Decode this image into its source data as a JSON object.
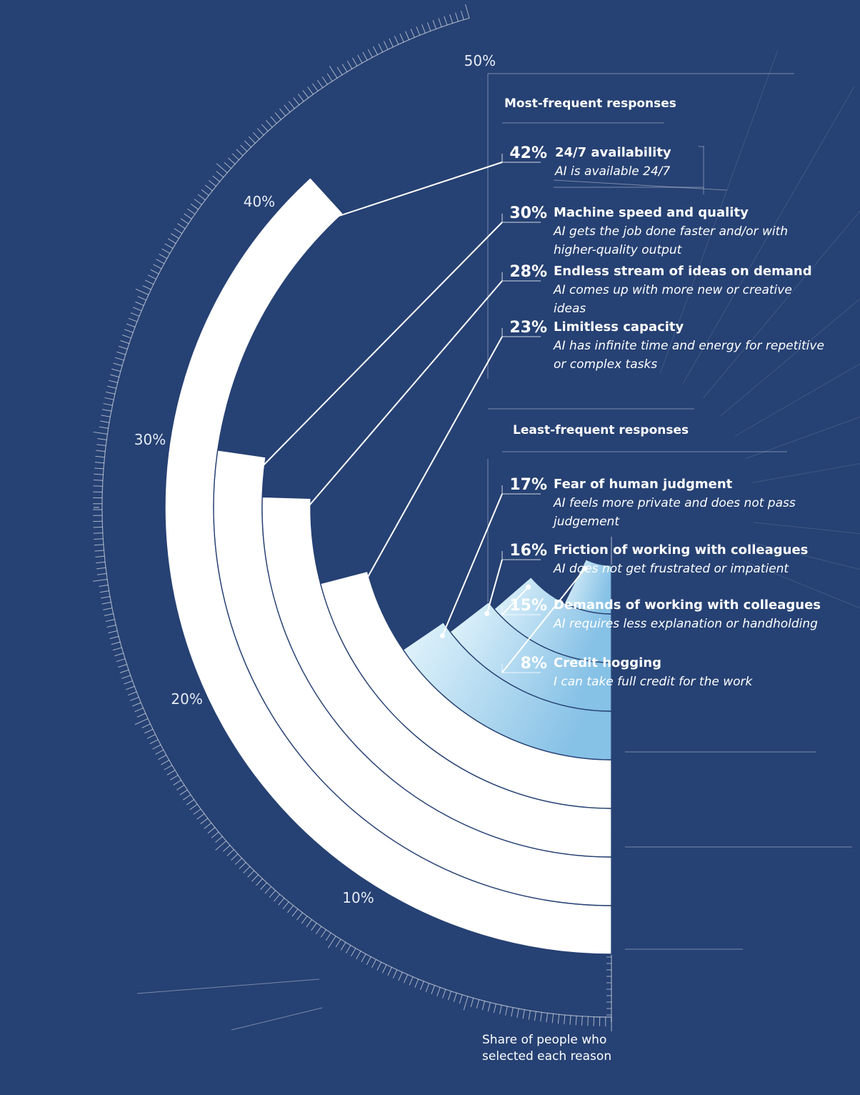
{
  "chart_data": {
    "type": "radial-bar",
    "sections": [
      {
        "name": "Most-frequent responses"
      },
      {
        "name": "Least-frequent responses"
      }
    ],
    "items": [
      {
        "value": 42,
        "value_label": "42%",
        "title": "24/7 availability",
        "description": "AI is available 24/7",
        "group": 0
      },
      {
        "value": 30,
        "value_label": "30%",
        "title": "Machine speed and quality",
        "description": "AI gets the job done faster and/or with higher-quality output",
        "group": 0
      },
      {
        "value": 28,
        "value_label": "28%",
        "title": "Endless stream of ideas on demand",
        "description": "AI comes up with more new or creative ideas",
        "group": 0
      },
      {
        "value": 23,
        "value_label": "23%",
        "title": "Limitless capacity",
        "description": "AI has infinite time and energy for repetitive or complex tasks",
        "group": 0
      },
      {
        "value": 17,
        "value_label": "17%",
        "title": "Fear of human judgment",
        "description": "AI feels more private and does not pass judgement",
        "group": 1
      },
      {
        "value": 16,
        "value_label": "16%",
        "title": "Friction of working with colleagues",
        "description": "AI does not get frustrated or impatient",
        "group": 1
      },
      {
        "value": 15,
        "value_label": "15%",
        "title": "Demands of working with colleagues",
        "description": "AI requires less explanation or handholding",
        "group": 1
      },
      {
        "value": 8,
        "value_label": "8%",
        "title": "Credit hogging",
        "description": "I can take full credit for the work",
        "group": 1
      }
    ],
    "axis": {
      "max": 50,
      "ticks": [
        {
          "value": 10,
          "label": "10%"
        },
        {
          "value": 20,
          "label": "20%"
        },
        {
          "value": 30,
          "label": "30%"
        },
        {
          "value": 40,
          "label": "40%"
        },
        {
          "value": 50,
          "label": "50%"
        }
      ]
    },
    "caption": "Share of people who selected each reason",
    "colors": {
      "background": "#264173",
      "most": "#ffffff",
      "least_start": "#e4f5fc",
      "least_end": "#86c1e6"
    }
  }
}
